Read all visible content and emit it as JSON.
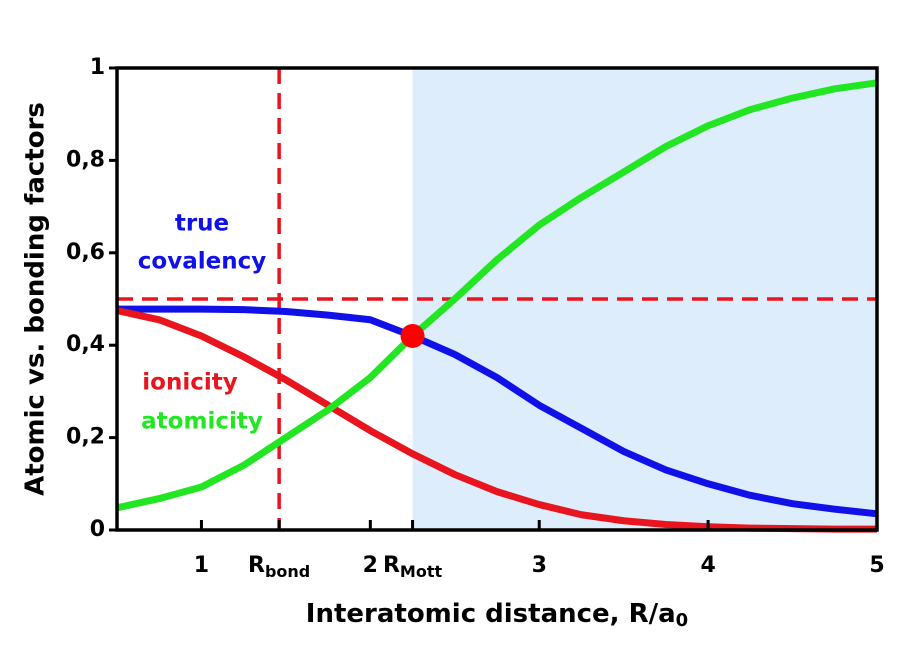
{
  "chart_data": {
    "type": "line",
    "xlabel": "Interatomic distance, R/a",
    "xlabel_subscript": "0",
    "ylabel": "Atomic vs. bonding factors",
    "xlim": [
      0.5,
      5
    ],
    "ylim": [
      0,
      1
    ],
    "xticks": [
      1,
      {
        "value": 1.46,
        "label": "R",
        "subscript": "bond"
      },
      2,
      {
        "value": 2.25,
        "label": "R",
        "subscript": "Mott"
      },
      3,
      4,
      5
    ],
    "yticks": [
      0,
      {
        "value": 0.2,
        "label": "0,2"
      },
      {
        "value": 0.4,
        "label": "0,4"
      },
      {
        "value": 0.6,
        "label": "0,6"
      },
      {
        "value": 0.8,
        "label": "0,8"
      },
      1
    ],
    "shaded_region": {
      "x": [
        2.25,
        5
      ],
      "color": "#deedfb"
    },
    "hline": {
      "y": 0.5,
      "color": "#e8141e"
    },
    "vline": {
      "x": 1.46,
      "color": "#e8141e"
    },
    "point": {
      "x": 2.25,
      "y": 0.42,
      "color": "#ff0000"
    },
    "x": [
      0.5,
      0.75,
      1.0,
      1.25,
      1.5,
      1.75,
      2.0,
      2.25,
      2.5,
      2.75,
      3.0,
      3.25,
      3.5,
      3.75,
      4.0,
      4.25,
      4.5,
      4.75,
      5.0
    ],
    "series": [
      {
        "name": "true covalency",
        "label_lines": [
          "true",
          "covalency"
        ],
        "color": "#1010e8",
        "values": [
          0.478,
          0.478,
          0.478,
          0.477,
          0.473,
          0.465,
          0.455,
          0.42,
          0.38,
          0.33,
          0.27,
          0.22,
          0.17,
          0.13,
          0.1,
          0.075,
          0.057,
          0.045,
          0.035
        ]
      },
      {
        "name": "ionicity",
        "label_lines": [
          "ionicity"
        ],
        "color": "#e8141e",
        "values": [
          0.475,
          0.455,
          0.42,
          0.375,
          0.325,
          0.27,
          0.215,
          0.165,
          0.12,
          0.083,
          0.055,
          0.033,
          0.02,
          0.012,
          0.007,
          0.004,
          0.003,
          0.002,
          0.002
        ]
      },
      {
        "name": "atomicity",
        "label_lines": [
          "atomicity"
        ],
        "color": "#22e622",
        "values": [
          0.048,
          0.068,
          0.093,
          0.14,
          0.2,
          0.26,
          0.33,
          0.42,
          0.5,
          0.585,
          0.66,
          0.72,
          0.775,
          0.83,
          0.875,
          0.91,
          0.935,
          0.955,
          0.968
        ]
      }
    ]
  }
}
